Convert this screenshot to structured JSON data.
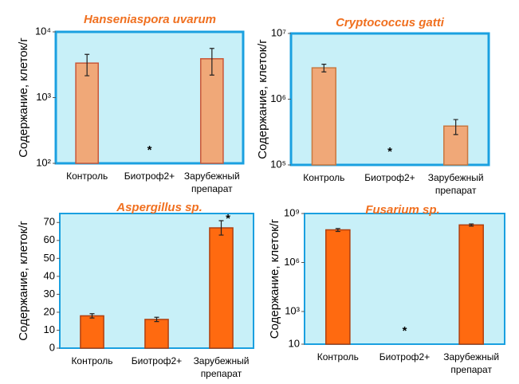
{
  "chart_data": [
    {
      "type": "bar",
      "title": "Hanseniaspora uvarum",
      "y_label": "Содержание, клеток/г",
      "categories": [
        "Контроль",
        "Биотроф2+",
        "Зарубежный препарат"
      ],
      "values": [
        3350,
        null,
        3900
      ],
      "errors": [
        1200,
        null,
        1700
      ],
      "significance": [
        null,
        "*",
        null
      ],
      "color": "#f0a878",
      "edge_color": "#c8583a",
      "log_scale": true,
      "ylim": [
        100,
        10000
      ],
      "yticks": [
        {
          "value": 100,
          "label": "10²"
        },
        {
          "value": 1000,
          "label": "10³"
        },
        {
          "value": 10000,
          "label": "10⁴"
        }
      ]
    },
    {
      "type": "bar",
      "title": "Cryptococcus gatti",
      "y_label": "Содержание, клеток/г",
      "categories": [
        "Контроль",
        "Биотроф2+",
        "Зарубежный препарат"
      ],
      "values": [
        3000000,
        null,
        390000
      ],
      "errors": [
        400000,
        null,
        100000
      ],
      "significance": [
        null,
        "*",
        null
      ],
      "color": "#f0a878",
      "edge_color": "#c87840",
      "log_scale": true,
      "ylim": [
        100000,
        10000000
      ],
      "yticks": [
        {
          "value": 100000,
          "label": "10⁵"
        },
        {
          "value": 1000000,
          "label": "10⁶"
        },
        {
          "value": 10000000,
          "label": "10⁷"
        }
      ]
    },
    {
      "type": "bar",
      "title": "Aspergillus sp.",
      "y_label": "Содержание, клеток/г",
      "categories": [
        "Контроль",
        "Биотроф2+",
        "Зарубежный препарат"
      ],
      "values": [
        18,
        16,
        67
      ],
      "errors": [
        1.2,
        1.2,
        4
      ],
      "significance": [
        null,
        null,
        "*"
      ],
      "color": "#ff6a10",
      "edge_color": "#b04010",
      "log_scale": false,
      "ylim": [
        0,
        75
      ],
      "yticks": [
        0,
        10,
        20,
        30,
        40,
        50,
        60,
        70
      ]
    },
    {
      "type": "bar",
      "title": "Fusarium sp.",
      "y_label": "Содержание, клеток/г",
      "categories": [
        "Контроль",
        "Биотроф2+",
        "Зарубежный препарат"
      ],
      "values": [
        100000000,
        null,
        200000000
      ],
      "errors": [
        20000000,
        null,
        30000000
      ],
      "significance": [
        null,
        "*",
        null
      ],
      "color": "#ff6a10",
      "edge_color": "#b04010",
      "log_scale": true,
      "ylim": [
        10,
        1000000000
      ],
      "yticks": [
        10,
        {
          "value": 1000,
          "label": "10³"
        },
        {
          "value": 1000000,
          "label": "10⁶"
        },
        {
          "value": 1000000000,
          "label": "10⁹"
        }
      ]
    }
  ]
}
